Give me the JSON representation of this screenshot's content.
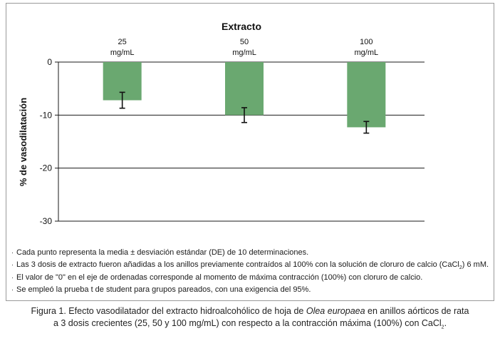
{
  "chart_data": {
    "type": "bar",
    "title": "Extracto",
    "ylabel": "% de vasodilatación",
    "xlabel": "",
    "ylim": [
      -30,
      0
    ],
    "yticks": [
      0,
      -10,
      -20,
      -30
    ],
    "grid": true,
    "categories": [
      "25\nmg/mL",
      "50\nmg/mL",
      "100\nmg/mL"
    ],
    "category_lines": [
      [
        "25",
        "mg/mL"
      ],
      [
        "50",
        "mg/mL"
      ],
      [
        "100",
        "mg/mL"
      ]
    ],
    "values": [
      -7.2,
      -10.0,
      -12.3
    ],
    "errors": [
      1.5,
      1.4,
      1.1
    ],
    "bar_color": "#6aa870",
    "error_color": "#111111"
  },
  "notes": [
    {
      "pre": "Cada punto representa la media ± desviación estándar (DE) de 10 determinaciones.",
      "sub": "",
      "post": ""
    },
    {
      "pre": "Las 3 dosis de extracto fueron añadidas a los anillos previamente contraídos al 100% con la solución de cloruro de calcio (CaCl",
      "sub": "2",
      "post": ") 6 mM."
    },
    {
      "pre": "El valor de \"0\" en el eje de ordenadas corresponde al momento de máxima contracción (100%) con cloruro de calcio.",
      "sub": "",
      "post": ""
    },
    {
      "pre": "Se empleó la prueba t de student para grupos pareados, con una exigencia del 95%.",
      "sub": "",
      "post": ""
    }
  ],
  "caption": {
    "part1": "Figura 1. Efecto vasodilatador del extracto hidroalcohólico de hoja de ",
    "italic": "Olea europaea",
    "part2": " en anillos aórticos de rata a 3 dosis crecientes  (25, 50 y 100 mg/mL) con respecto a la contracción máxima (100%) con CaCl",
    "sub": "2",
    "part3": "."
  }
}
